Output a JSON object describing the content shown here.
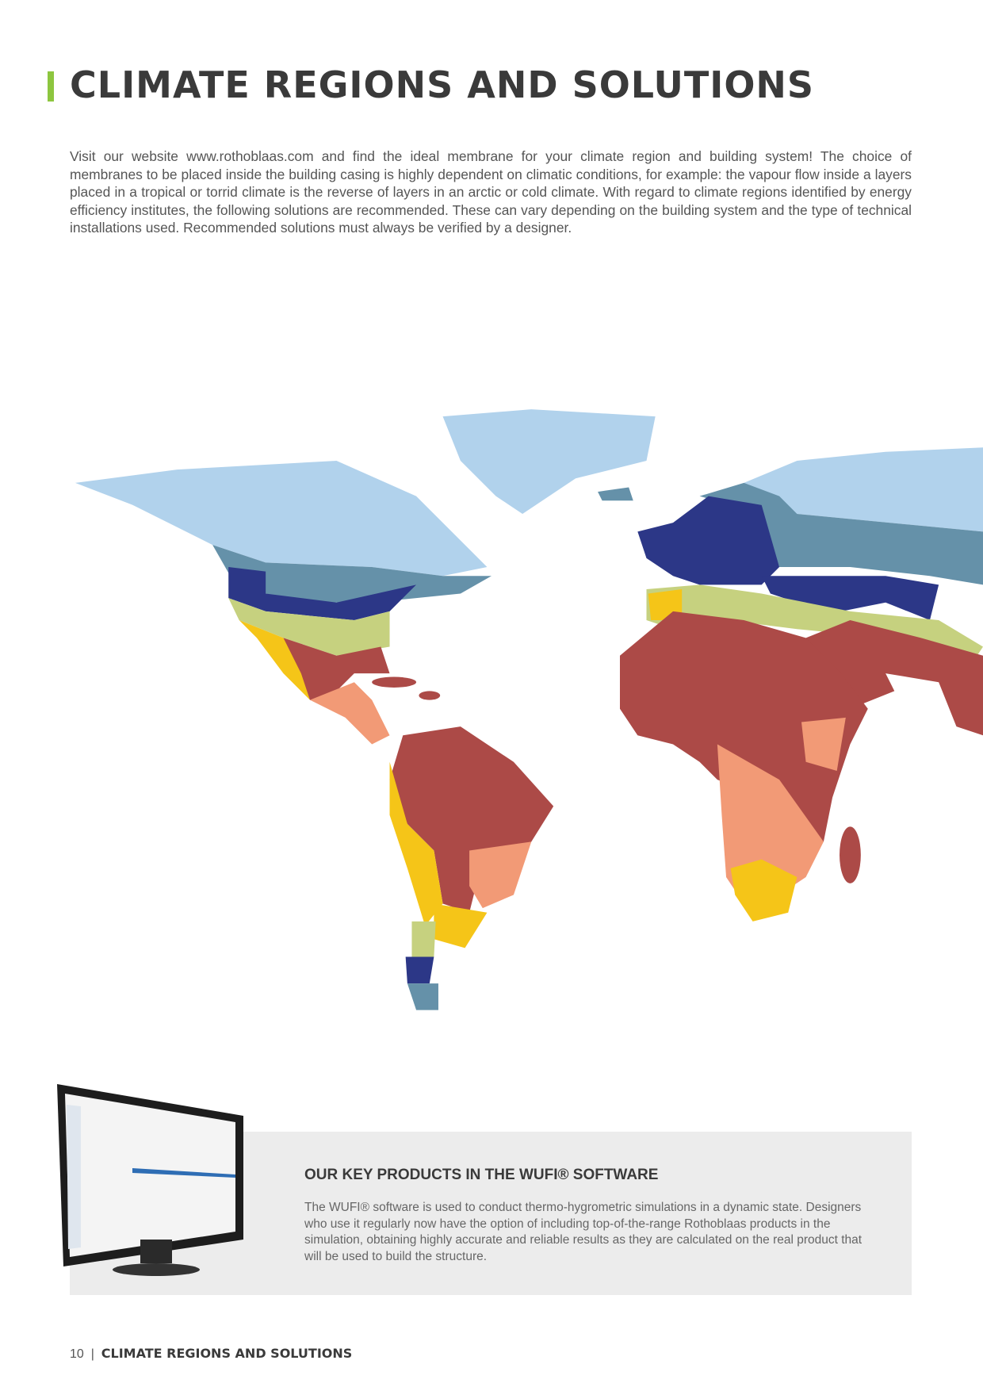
{
  "header": {
    "title": "CLIMATE REGIONS AND SOLUTIONS"
  },
  "intro": "Visit our website www.rothoblaas.com and find the ideal membrane for your climate region and building system! The choice of membranes to be placed inside the building casing is highly dependent on climatic conditions, for example: the vapour flow inside a layers placed in a tropical or torrid climate is the reverse of layers in an arctic or cold climate. With regard to climate regions identified by energy efficiency institutes, the following solutions are recommended. These can vary depending on the building system and the type of technical installations used. Recommended solutions must always be verified by a designer.",
  "callout": {
    "title": "OUR KEY PRODUCTS IN THE WUFI® SOFTWARE",
    "text": "The WUFI® software is used to conduct thermo-hygrometric simulations in a dynamic state. Designers who use it regularly now have the option of including top-of-the-range Rothoblaas products in the simulation, obtaining highly accurate and reliable results as they are calculated on the real product that will be used to build the structure."
  },
  "footer": {
    "page": "10",
    "section": "CLIMATE REGIONS AND SOLUTIONS"
  }
}
